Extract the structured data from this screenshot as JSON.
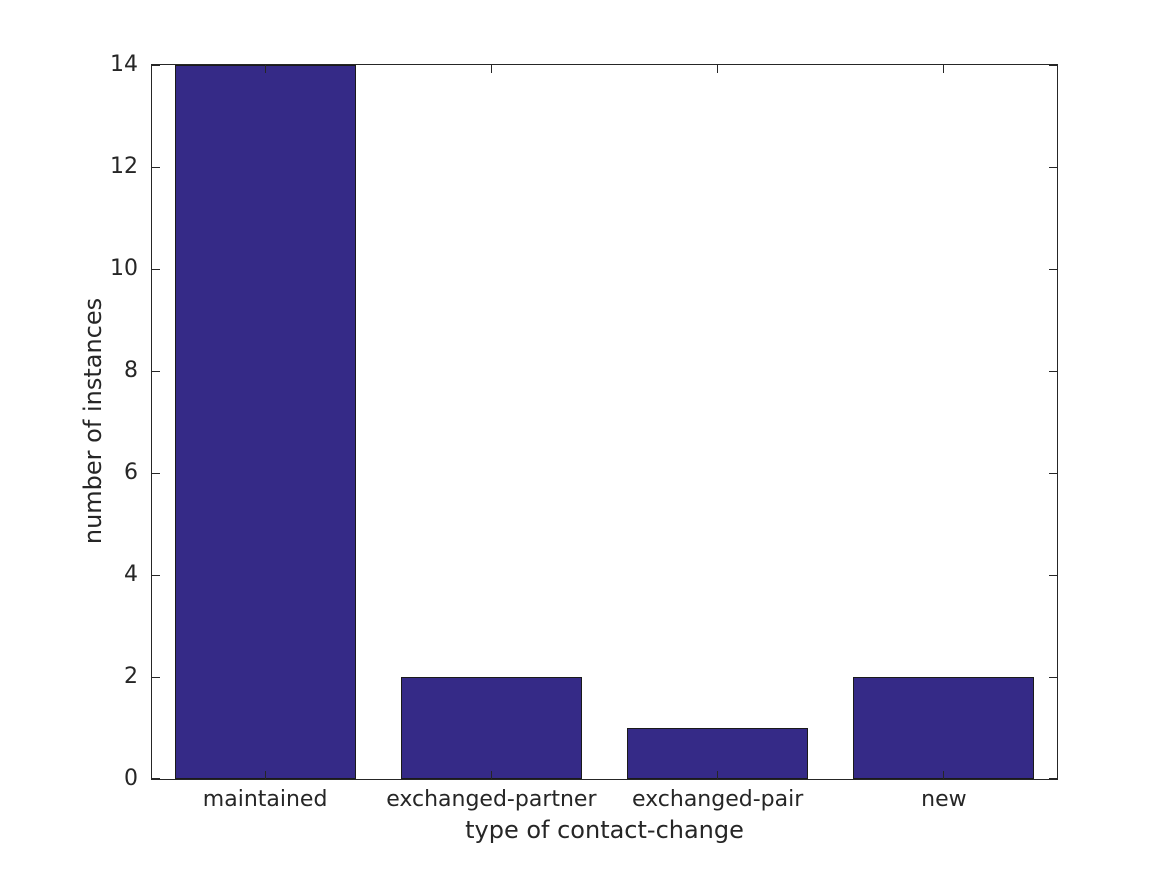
{
  "figure": {
    "background": "#ffffff"
  },
  "chart_data": {
    "type": "bar",
    "categories": [
      "maintained",
      "exchanged-partner",
      "exchanged-pair",
      "new"
    ],
    "values": [
      14,
      2,
      1,
      2
    ],
    "title": "",
    "xlabel": "type of contact-change",
    "ylabel": "number of instances",
    "ylim": [
      0,
      14
    ],
    "yticks": [
      0,
      2,
      4,
      6,
      8,
      10,
      12,
      14
    ],
    "bar_color": "#352A87",
    "bar_edge_color": "#1a1a1a",
    "axis_color": "#262626",
    "text_color": "#262626",
    "bar_width_fraction": 0.8,
    "grid": false,
    "box": true,
    "tick_direction": "in",
    "legend": null
  }
}
